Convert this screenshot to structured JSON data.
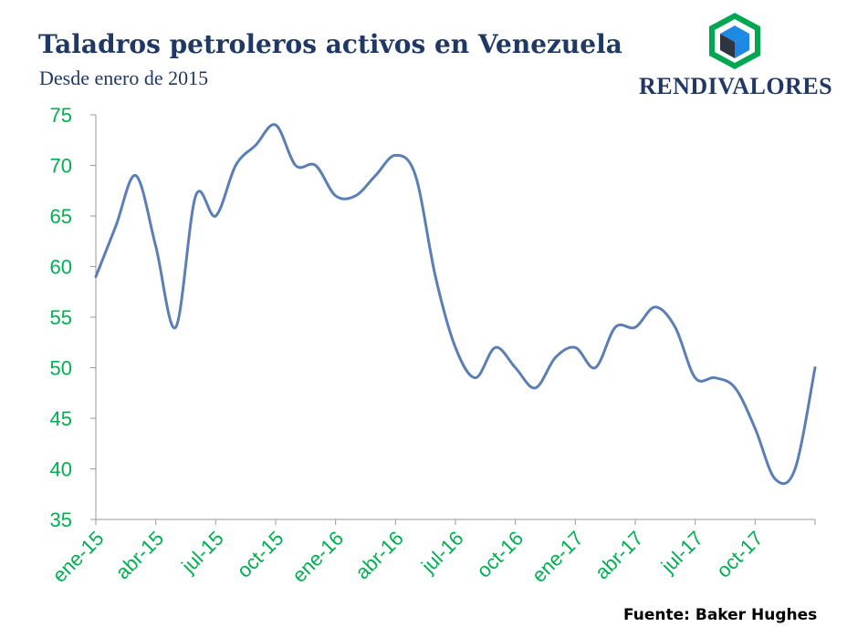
{
  "header": {
    "title": "Taladros petroleros activos en Venezuela",
    "subtitle": "Desde enero de 2015"
  },
  "brand": {
    "name": "RENDIVALORES",
    "logo_icon": "cube-hexagon-icon"
  },
  "footer": {
    "source": "Fuente: Baker Hughes"
  },
  "colors": {
    "line": "#5b7fb5",
    "tick_labels": "#00b050",
    "title": "#1f3864",
    "logo_green": "#00a651",
    "logo_blue": "#1e88e5",
    "logo_dark": "#2e3440"
  },
  "chart_data": {
    "type": "line",
    "title": "Taladros petroleros activos en Venezuela",
    "subtitle": "Desde enero de 2015",
    "xlabel": "",
    "ylabel": "",
    "ylim": [
      35,
      75
    ],
    "yticks": [
      35,
      40,
      45,
      50,
      55,
      60,
      65,
      70,
      75
    ],
    "x_tick_labels": [
      "ene-15",
      "abr-15",
      "jul-15",
      "oct-15",
      "ene-16",
      "abr-16",
      "jul-16",
      "oct-16",
      "ene-17",
      "abr-17",
      "jul-17",
      "oct-17"
    ],
    "grid": false,
    "legend": "none",
    "x": [
      "ene-15",
      "feb-15",
      "mar-15",
      "abr-15",
      "may-15",
      "jun-15",
      "jul-15",
      "ago-15",
      "sep-15",
      "oct-15",
      "nov-15",
      "dic-15",
      "ene-16",
      "feb-16",
      "mar-16",
      "abr-16",
      "may-16",
      "jun-16",
      "jul-16",
      "ago-16",
      "sep-16",
      "oct-16",
      "nov-16",
      "dic-16",
      "ene-17",
      "feb-17",
      "mar-17",
      "abr-17",
      "may-17",
      "jun-17",
      "jul-17",
      "ago-17",
      "sep-17",
      "oct-17",
      "nov-17",
      "dic-17",
      "ene-18"
    ],
    "series": [
      {
        "values": [
          59,
          64,
          69,
          62,
          54,
          67,
          65,
          70,
          72,
          74,
          70,
          70,
          67,
          67,
          69,
          71,
          69,
          59,
          52,
          49,
          52,
          50,
          48,
          51,
          52,
          50,
          54,
          54,
          56,
          54,
          49,
          49,
          48,
          44,
          39,
          40,
          50
        ]
      }
    ]
  }
}
